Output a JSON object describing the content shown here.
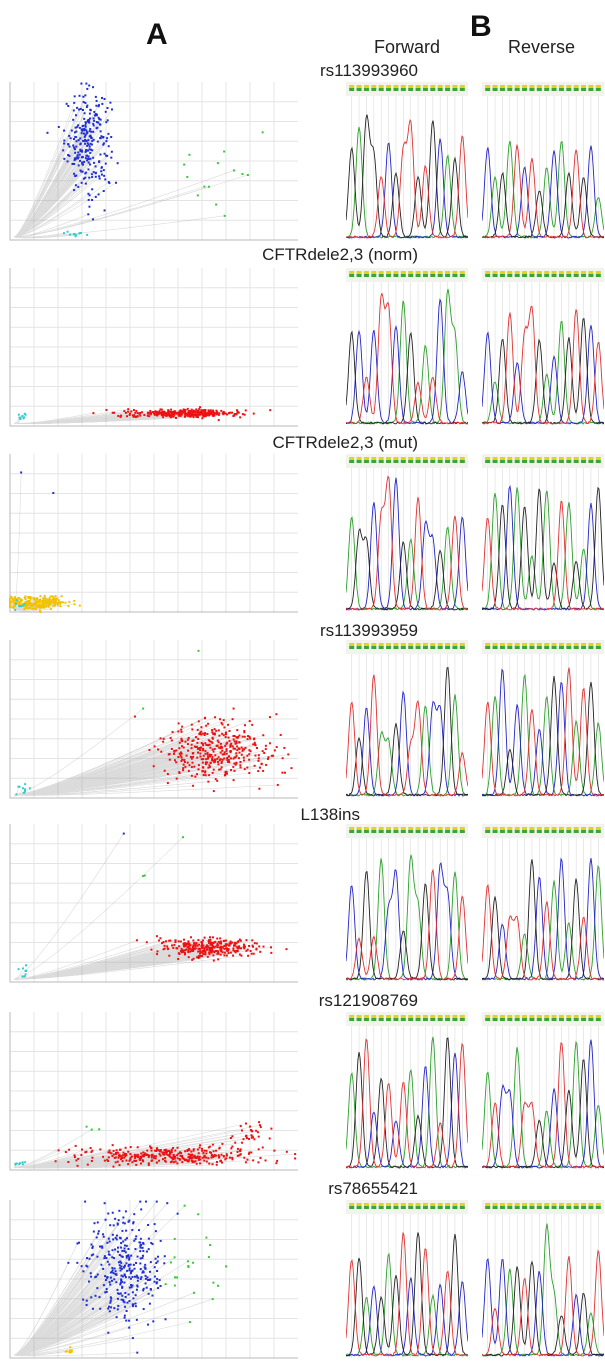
{
  "panels": {
    "a_label": "A",
    "b_label": "B"
  },
  "columns": {
    "forward": "Forward",
    "reverse": "Reverse"
  },
  "colors": {
    "grid": "#e4e4e4",
    "axis": "#b8b8b8",
    "trace": "#9a9a9a",
    "allele_blue": "#1f2fd6",
    "allele_red": "#ee1111",
    "allele_green": "#33cc33",
    "allele_yellow": "#f2c200",
    "ntc_cyan": "#33cccc",
    "base_A": "#2aa02a",
    "base_C": "#2323c8",
    "base_G": "#222222",
    "base_T": "#e23030"
  },
  "rows": [
    {
      "title": "rs113993960"
    },
    {
      "title": "CFTRdele2,3 (norm)"
    },
    {
      "title": "CFTRdele2,3 (mut)"
    },
    {
      "title": "rs113993959"
    },
    {
      "title": "L138ins"
    },
    {
      "title": "rs121908769"
    },
    {
      "title": "rs78655421"
    }
  ],
  "chart_data": [
    {
      "type": "scatter",
      "name": "rs113993960",
      "clusters": [
        {
          "color": "allele_blue",
          "cx": 0.27,
          "cy": 0.62,
          "sx": 0.04,
          "sy": 0.16,
          "n": 260
        },
        {
          "color": "allele_green",
          "cx": 0.74,
          "cy": 0.38,
          "sx": 0.08,
          "sy": 0.14,
          "n": 14
        },
        {
          "color": "ntc_cyan",
          "cx": 0.23,
          "cy": 0.04,
          "sx": 0.02,
          "sy": 0.01,
          "n": 12
        }
      ]
    },
    {
      "type": "scatter",
      "name": "CFTRdele2,3 (norm)",
      "clusters": [
        {
          "color": "allele_red",
          "cx": 0.6,
          "cy": 0.08,
          "sx": 0.1,
          "sy": 0.012,
          "n": 340
        },
        {
          "color": "ntc_cyan",
          "cx": 0.04,
          "cy": 0.06,
          "sx": 0.01,
          "sy": 0.01,
          "n": 10
        }
      ]
    },
    {
      "type": "scatter",
      "name": "CFTRdele2,3 (mut)",
      "clusters": [
        {
          "color": "allele_yellow",
          "cx": 0.09,
          "cy": 0.06,
          "sx": 0.06,
          "sy": 0.02,
          "n": 240
        },
        {
          "color": "allele_blue",
          "cx": 0.04,
          "cy": 0.88,
          "sx": 0.003,
          "sy": 0.01,
          "n": 1
        },
        {
          "color": "allele_blue",
          "cx": 0.15,
          "cy": 0.76,
          "sx": 0.003,
          "sy": 0.01,
          "n": 1
        },
        {
          "color": "ntc_cyan",
          "cx": 0.03,
          "cy": 0.04,
          "sx": 0.01,
          "sy": 0.01,
          "n": 8
        }
      ]
    },
    {
      "type": "scatter",
      "name": "rs113993959",
      "clusters": [
        {
          "color": "allele_red",
          "cx": 0.72,
          "cy": 0.3,
          "sx": 0.1,
          "sy": 0.1,
          "n": 380
        },
        {
          "color": "allele_green",
          "cx": 0.66,
          "cy": 0.93,
          "sx": 0.003,
          "sy": 0.01,
          "n": 1
        },
        {
          "color": "allele_green",
          "cx": 0.46,
          "cy": 0.58,
          "sx": 0.003,
          "sy": 0.01,
          "n": 1
        },
        {
          "color": "ntc_cyan",
          "cx": 0.04,
          "cy": 0.06,
          "sx": 0.015,
          "sy": 0.02,
          "n": 10
        }
      ]
    },
    {
      "type": "scatter",
      "name": "L138ins",
      "clusters": [
        {
          "color": "allele_red",
          "cx": 0.69,
          "cy": 0.22,
          "sx": 0.08,
          "sy": 0.03,
          "n": 300
        },
        {
          "color": "allele_green",
          "cx": 0.6,
          "cy": 0.9,
          "sx": 0.003,
          "sy": 0.01,
          "n": 1
        },
        {
          "color": "allele_green",
          "cx": 0.46,
          "cy": 0.68,
          "sx": 0.006,
          "sy": 0.01,
          "n": 2
        },
        {
          "color": "allele_blue",
          "cx": 0.39,
          "cy": 0.94,
          "sx": 0.003,
          "sy": 0.01,
          "n": 1
        },
        {
          "color": "ntc_cyan",
          "cx": 0.04,
          "cy": 0.06,
          "sx": 0.015,
          "sy": 0.02,
          "n": 10
        }
      ]
    },
    {
      "type": "scatter",
      "name": "rs121908769",
      "clusters": [
        {
          "color": "allele_red",
          "cx": 0.55,
          "cy": 0.09,
          "sx": 0.16,
          "sy": 0.03,
          "n": 340
        },
        {
          "color": "allele_red",
          "cx": 0.84,
          "cy": 0.22,
          "sx": 0.03,
          "sy": 0.04,
          "n": 30
        },
        {
          "color": "allele_green",
          "cx": 0.28,
          "cy": 0.26,
          "sx": 0.02,
          "sy": 0.02,
          "n": 3
        },
        {
          "color": "ntc_cyan",
          "cx": 0.04,
          "cy": 0.04,
          "sx": 0.015,
          "sy": 0.01,
          "n": 8
        }
      ]
    },
    {
      "type": "scatter",
      "name": "rs78655421",
      "clusters": [
        {
          "color": "allele_blue",
          "cx": 0.4,
          "cy": 0.58,
          "sx": 0.07,
          "sy": 0.18,
          "n": 320
        },
        {
          "color": "allele_green",
          "cx": 0.62,
          "cy": 0.6,
          "sx": 0.06,
          "sy": 0.14,
          "n": 22
        },
        {
          "color": "allele_yellow",
          "cx": 0.21,
          "cy": 0.04,
          "sx": 0.01,
          "sy": 0.01,
          "n": 8
        }
      ]
    }
  ],
  "chromatograms": [
    {
      "fwd": "GAGGTCGTTGTGCAGT",
      "rev": "CAGATCTGACAGTGCA"
    },
    {
      "fwd": "GCTCTTCAGTATCAAC",
      "rev": "CAGTCTTGACAGTGCT"
    },
    {
      "fwd": "AGGCTTCGATCCGATC",
      "rev": "TAGCAGAGAGTAGACG"
    },
    {
      "fwd": "TGCTAAGCTTACCGAT",
      "rev": "TACGCATCAGCTATGA"
    },
    {
      "fwd": "CTGTACCGAAGTCCAT",
      "rev": "TGCTTAGCTACAGTCA"
    },
    {
      "fwd": "AGTCGTCTAGCATGCT",
      "rev": "ATCCATTGACTGAGCA"
    },
    {
      "fwd": "TGACGAGTCGTACTGC",
      "rev": "CTCAGTGCAAGTCGAT"
    }
  ]
}
